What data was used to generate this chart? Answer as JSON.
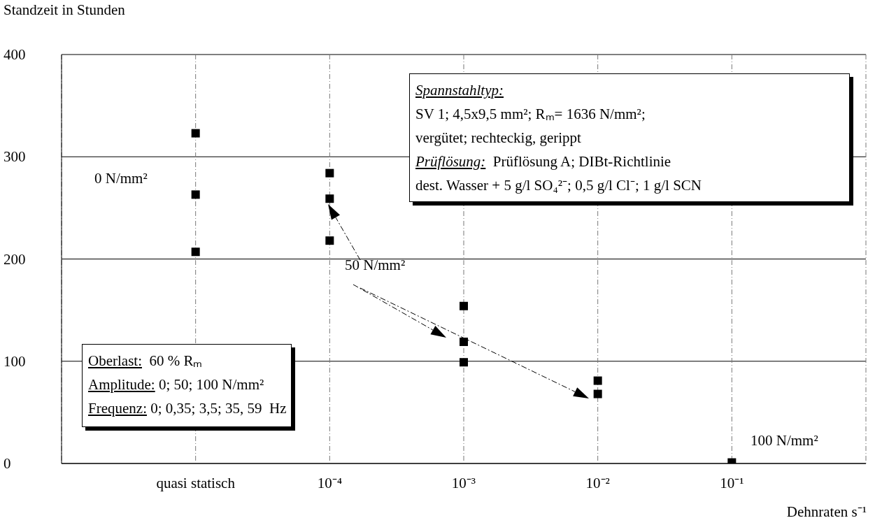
{
  "chart_data": {
    "type": "scatter",
    "ylabel": "Standzeit in Stunden",
    "xlabel": "Dehnraten s⁻¹",
    "categories": [
      "quasi statisch",
      "10⁻⁴",
      "10⁻³",
      "10⁻²",
      "10⁻¹"
    ],
    "series": [
      {
        "color": "#000000",
        "values": [
          323,
          284,
          154,
          81,
          1
        ]
      },
      {
        "color": "#000000",
        "values": [
          263,
          259,
          119,
          68,
          null
        ]
      },
      {
        "color": "#000000",
        "values": [
          207,
          218,
          99,
          null,
          null
        ]
      }
    ],
    "ylim": [
      0,
      400
    ],
    "yticks": [
      0,
      100,
      200,
      300,
      400
    ],
    "grid": true,
    "marker": "square",
    "annotations": [
      "Spannstahltyp:",
      "SV 1; 4,5x9,5 mm²; Rₘ= 1636 N/mm²;",
      "vergütet; rechteckig, gerippt",
      "Prüflösung:  Prüflösung A; DIBt-Richtlinie",
      "dest. Wasser + 5 g/l SO₄²⁻; 0,5 g/l Cl⁻; 1 g/l SCN",
      "Oberlast:  60 % Rₘ",
      "Amplitude: 0; 50; 100 N/mm²",
      "Frequenz: 0; 0,35; 3,5; 35, 59  Hz",
      "0 N/mm²",
      "50 N/mm²",
      "100 N/mm²"
    ]
  }
}
